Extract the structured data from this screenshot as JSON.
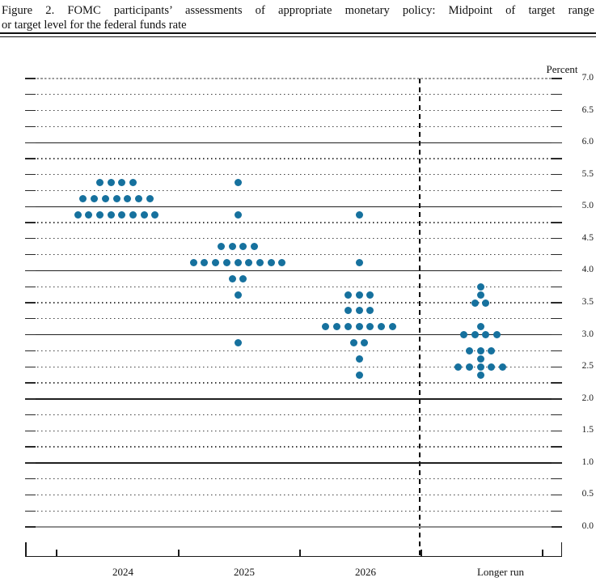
{
  "title": {
    "line1": "Figure 2.  FOMC participants’ assessments of appropriate monetary policy: Midpoint of target range",
    "line2": "or target level for the federal funds rate"
  },
  "chart_data": {
    "type": "scatter",
    "title": "FOMC participants’ assessments of appropriate monetary policy: Midpoint of target range or target level for the federal funds rate",
    "ylabel": "Percent",
    "ylim": [
      0.0,
      7.0
    ],
    "y_tick_labels": [
      "7.0",
      "6.5",
      "6.0",
      "5.5",
      "5.0",
      "4.5",
      "4.0",
      "3.5",
      "3.0",
      "2.5",
      "2.0",
      "1.5",
      "1.0",
      "0.5",
      "0.0"
    ],
    "y_gridline_step": 0.25,
    "grid": "solid lines at integers, dotted lines at quarter points, end ticks on both sides",
    "legend_position": "none",
    "separator": "vertical dashed line between 2026 and Longer run",
    "dot_color": "#16719e",
    "categories": [
      "2024",
      "2025",
      "2026",
      "Longer run"
    ],
    "participants_per_column": 19,
    "dots": [
      {
        "category": "2024",
        "rate": 5.375,
        "count": 4
      },
      {
        "category": "2024",
        "rate": 5.125,
        "count": 7
      },
      {
        "category": "2024",
        "rate": 4.875,
        "count": 8
      },
      {
        "category": "2025",
        "rate": 5.375,
        "count": 1
      },
      {
        "category": "2025",
        "rate": 4.875,
        "count": 1
      },
      {
        "category": "2025",
        "rate": 4.375,
        "count": 4
      },
      {
        "category": "2025",
        "rate": 4.125,
        "count": 9
      },
      {
        "category": "2025",
        "rate": 3.875,
        "count": 2
      },
      {
        "category": "2025",
        "rate": 3.625,
        "count": 1
      },
      {
        "category": "2025",
        "rate": 2.875,
        "count": 1
      },
      {
        "category": "2026",
        "rate": 4.875,
        "count": 1
      },
      {
        "category": "2026",
        "rate": 4.125,
        "count": 1
      },
      {
        "category": "2026",
        "rate": 3.625,
        "count": 3
      },
      {
        "category": "2026",
        "rate": 3.375,
        "count": 3
      },
      {
        "category": "2026",
        "rate": 3.125,
        "count": 7
      },
      {
        "category": "2026",
        "rate": 2.875,
        "count": 2
      },
      {
        "category": "2026",
        "rate": 2.625,
        "count": 1
      },
      {
        "category": "2026",
        "rate": 2.375,
        "count": 1
      },
      {
        "category": "Longer run",
        "rate": 3.75,
        "count": 1
      },
      {
        "category": "Longer run",
        "rate": 3.625,
        "count": 1
      },
      {
        "category": "Longer run",
        "rate": 3.5,
        "count": 2
      },
      {
        "category": "Longer run",
        "rate": 3.125,
        "count": 1
      },
      {
        "category": "Longer run",
        "rate": 3.0,
        "count": 4
      },
      {
        "category": "Longer run",
        "rate": 2.75,
        "count": 3
      },
      {
        "category": "Longer run",
        "rate": 2.625,
        "count": 1
      },
      {
        "category": "Longer run",
        "rate": 2.5,
        "count": 5
      },
      {
        "category": "Longer run",
        "rate": 2.375,
        "count": 1
      }
    ]
  }
}
